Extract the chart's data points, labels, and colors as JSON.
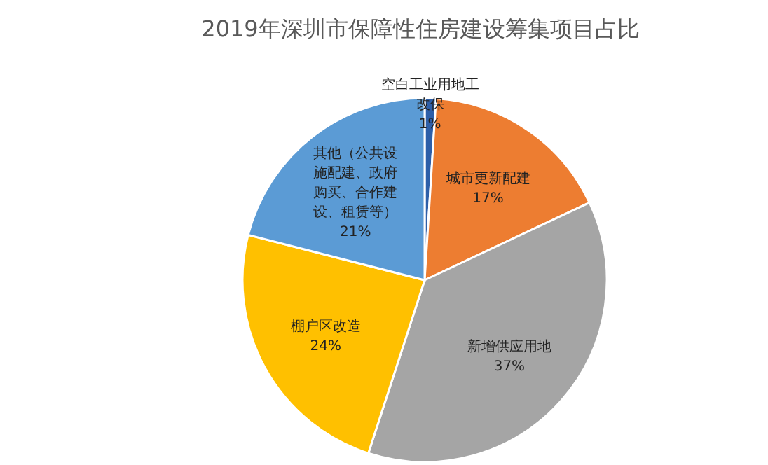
{
  "chart_data": {
    "type": "pie",
    "title": "2019年深圳市保障性住房建设筹集项目占比",
    "categories": [
      "空白工业用地工改保",
      "城市更新配建",
      "新增供应用地",
      "棚户区改造",
      "其他（公共设施配建、政府购买、合作建设、租赁等）"
    ],
    "values": [
      1,
      17,
      37,
      24,
      21
    ],
    "value_labels": [
      "1%",
      "17%",
      "37%",
      "24%",
      "21%"
    ],
    "colors": [
      "#2e5fa8",
      "#ed7d31",
      "#a5a5a5",
      "#ffc000",
      "#5b9bd5"
    ],
    "legend": false
  }
}
